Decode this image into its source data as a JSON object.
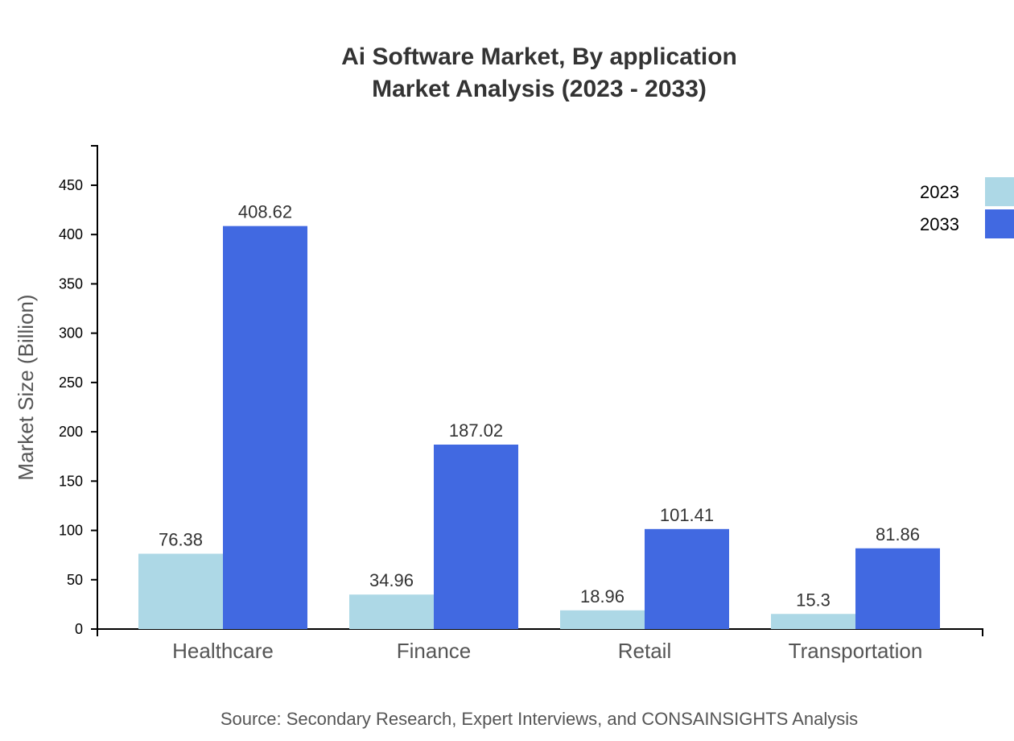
{
  "chart_data": {
    "type": "bar",
    "title": "Ai Software Market, By application",
    "subtitle": "Market Analysis (2023 - 2033)",
    "xlabel": "",
    "ylabel": "Market Size (Billion)",
    "ylim": [
      0,
      490
    ],
    "yticks": [
      0,
      50,
      100,
      150,
      200,
      250,
      300,
      350,
      400,
      450
    ],
    "categories": [
      "Healthcare",
      "Finance",
      "Retail",
      "Transportation"
    ],
    "series": [
      {
        "name": "2023",
        "color": "#ADD8E6",
        "values": [
          76.38,
          34.96,
          18.96,
          15.3
        ],
        "labels": [
          "76.38",
          "34.96",
          "18.96",
          "15.3"
        ]
      },
      {
        "name": "2033",
        "color": "#4169E1",
        "values": [
          408.62,
          187.02,
          101.41,
          81.86
        ],
        "labels": [
          "408.62",
          "187.02",
          "101.41",
          "81.86"
        ]
      }
    ],
    "legend_position": "top-right",
    "grid": false,
    "source": "Source: Secondary Research, Expert Interviews, and CONSAINSIGHTS Analysis"
  }
}
